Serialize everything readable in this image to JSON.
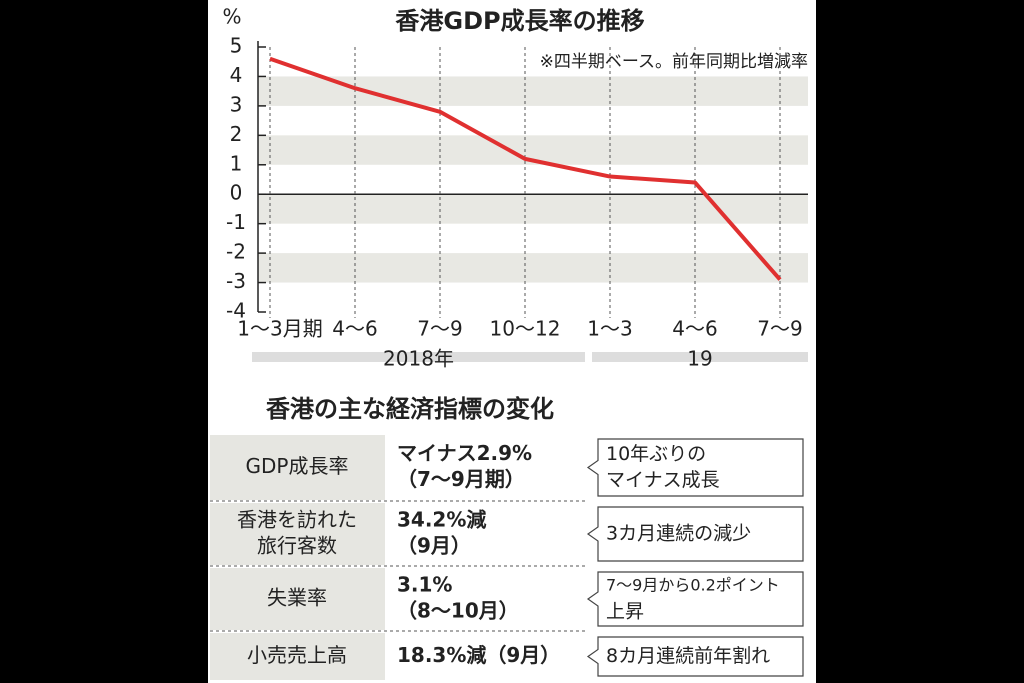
{
  "chart_data": {
    "type": "line",
    "title": "香港GDP成長率の推移",
    "unit": "%",
    "note": "※四半期ベース。前年同期比増減率",
    "categories": [
      "1〜3月期",
      "4〜6",
      "7〜9",
      "10〜12",
      "1〜3",
      "4〜6",
      "7〜9"
    ],
    "groups": [
      {
        "label": "2018年",
        "count": 4
      },
      {
        "label": "19",
        "count": 3
      }
    ],
    "values": [
      4.6,
      3.6,
      2.8,
      1.2,
      0.6,
      0.4,
      -2.9
    ],
    "color": "#e03030",
    "ylim": [
      -4,
      5
    ],
    "yticks": [
      -4,
      -3,
      -2,
      -1,
      0,
      1,
      2,
      3,
      4,
      5
    ],
    "grid": "bands"
  },
  "table": {
    "title": "香港の主な経済指標の変化",
    "rows": [
      {
        "label": [
          "GDP成長率"
        ],
        "value": [
          "マイナス2.9%",
          "（7〜9月期）"
        ],
        "note": [
          "10年ぶりの",
          "マイナス成長"
        ]
      },
      {
        "label": [
          "香港を訪れた",
          "旅行客数"
        ],
        "value": [
          "34.2%減",
          "（9月）"
        ],
        "note": [
          "3カ月連続の減少"
        ]
      },
      {
        "label": [
          "失業率"
        ],
        "value": [
          "3.1%",
          "（8〜10月）"
        ],
        "note": [
          "7〜9月から0.2ポイント",
          "上昇"
        ]
      },
      {
        "label": [
          "小売売上高"
        ],
        "value": [
          "18.3%減（9月）"
        ],
        "note": [
          "8カ月連続前年割れ"
        ]
      }
    ]
  }
}
